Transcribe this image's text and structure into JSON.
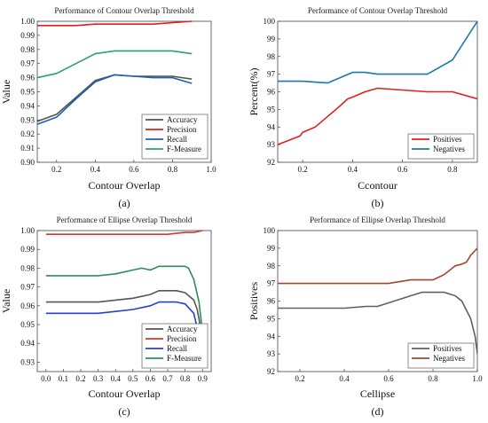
{
  "chart_data": [
    {
      "panel_label": "(a)",
      "type": "line",
      "title": "Performance of Contour Overlap Threshold",
      "xlabel": "Contour Overlap",
      "ylabel": "Value",
      "xlim": [
        0.1,
        1.0
      ],
      "ylim": [
        0.9,
        1.0
      ],
      "xticks": [
        "0.2",
        "0.4",
        "0.6",
        "0.8",
        "1.0"
      ],
      "yticks": [
        "0.90",
        "0.91",
        "0.92",
        "0.93",
        "0.94",
        "0.95",
        "0.96",
        "0.97",
        "0.98",
        "0.99",
        "1.00"
      ],
      "legend_position": "bottom-right",
      "series": [
        {
          "name": "Accuracy",
          "color": "#555555",
          "x": [
            0.1,
            0.2,
            0.3,
            0.4,
            0.5,
            0.6,
            0.7,
            0.8,
            0.9
          ],
          "y": [
            0.929,
            0.934,
            0.946,
            0.958,
            0.962,
            0.961,
            0.961,
            0.961,
            0.959
          ]
        },
        {
          "name": "Precision",
          "color": "#e02020",
          "x": [
            0.1,
            0.2,
            0.3,
            0.4,
            0.5,
            0.6,
            0.7,
            0.8,
            0.9
          ],
          "y": [
            0.997,
            0.997,
            0.997,
            0.998,
            0.998,
            0.998,
            0.998,
            0.999,
            1.0
          ]
        },
        {
          "name": "Recall",
          "color": "#1f5fb4",
          "x": [
            0.1,
            0.2,
            0.3,
            0.4,
            0.5,
            0.6,
            0.7,
            0.8,
            0.9
          ],
          "y": [
            0.927,
            0.932,
            0.945,
            0.957,
            0.962,
            0.961,
            0.96,
            0.96,
            0.956
          ]
        },
        {
          "name": "F-Measure",
          "color": "#2e9e6b",
          "x": [
            0.1,
            0.2,
            0.3,
            0.4,
            0.5,
            0.6,
            0.7,
            0.8,
            0.9
          ],
          "y": [
            0.96,
            0.963,
            0.97,
            0.977,
            0.979,
            0.979,
            0.979,
            0.979,
            0.977
          ]
        }
      ]
    },
    {
      "panel_label": "(b)",
      "type": "line",
      "title": "Performance of Contour Overlap Threshold",
      "xlabel": "Ccontour",
      "ylabel": "Percent(%)",
      "xlim": [
        0.1,
        0.9
      ],
      "ylim": [
        92,
        100
      ],
      "xticks": [
        "0.2",
        "0.4",
        "0.6",
        "0.8"
      ],
      "yticks": [
        "92",
        "93",
        "94",
        "95",
        "96",
        "97",
        "98",
        "99",
        "100"
      ],
      "legend_position": "bottom-right",
      "series": [
        {
          "name": "Positives",
          "color": "#e02020",
          "x": [
            0.1,
            0.19,
            0.2,
            0.25,
            0.3,
            0.35,
            0.38,
            0.4,
            0.45,
            0.5,
            0.6,
            0.7,
            0.8,
            0.9
          ],
          "y": [
            93.0,
            93.5,
            93.7,
            94.0,
            94.6,
            95.2,
            95.6,
            95.7,
            96.0,
            96.2,
            96.1,
            96.0,
            96.0,
            95.6
          ]
        },
        {
          "name": "Negatives",
          "color": "#1a7aa8",
          "x": [
            0.1,
            0.2,
            0.3,
            0.35,
            0.4,
            0.45,
            0.5,
            0.6,
            0.7,
            0.8,
            0.9
          ],
          "y": [
            96.6,
            96.6,
            96.5,
            96.8,
            97.1,
            97.1,
            97.0,
            97.0,
            97.0,
            97.8,
            100.0
          ]
        }
      ]
    },
    {
      "panel_label": "(c)",
      "type": "line",
      "title": "Performance of Ellipse Overlap Threshold",
      "xlabel": "Contour Overlap",
      "ylabel": "Value",
      "xlim": [
        -0.05,
        0.95
      ],
      "ylim": [
        0.925,
        1.0
      ],
      "xticks": [
        "0.0",
        "0.1",
        "0.2",
        "0.3",
        "0.4",
        "0.5",
        "0.6",
        "0.7",
        "0.8",
        "0.9"
      ],
      "yticks": [
        "0.93",
        "0.94",
        "0.95",
        "0.96",
        "0.97",
        "0.98",
        "0.99",
        "1.00"
      ],
      "legend_position": "bottom-right",
      "series": [
        {
          "name": "Accuracy",
          "color": "#555555",
          "x": [
            0.0,
            0.1,
            0.2,
            0.3,
            0.4,
            0.5,
            0.6,
            0.65,
            0.7,
            0.75,
            0.8,
            0.85,
            0.87,
            0.89,
            0.91
          ],
          "y": [
            0.962,
            0.962,
            0.962,
            0.962,
            0.963,
            0.964,
            0.966,
            0.968,
            0.968,
            0.968,
            0.967,
            0.963,
            0.958,
            0.948,
            0.935
          ]
        },
        {
          "name": "Precision",
          "color": "#d03a2a",
          "x": [
            0.0,
            0.2,
            0.4,
            0.6,
            0.7,
            0.8,
            0.85,
            0.9
          ],
          "y": [
            0.998,
            0.998,
            0.998,
            0.998,
            0.998,
            0.999,
            0.999,
            1.0
          ]
        },
        {
          "name": "Recall",
          "color": "#2a3fd0",
          "x": [
            0.0,
            0.1,
            0.2,
            0.3,
            0.4,
            0.5,
            0.6,
            0.65,
            0.7,
            0.75,
            0.8,
            0.85,
            0.87,
            0.89,
            0.9
          ],
          "y": [
            0.956,
            0.956,
            0.956,
            0.956,
            0.957,
            0.958,
            0.96,
            0.962,
            0.962,
            0.962,
            0.961,
            0.956,
            0.948,
            0.936,
            0.928
          ]
        },
        {
          "name": "F-Measure",
          "color": "#2e8b57",
          "x": [
            0.0,
            0.1,
            0.2,
            0.3,
            0.4,
            0.5,
            0.55,
            0.6,
            0.65,
            0.7,
            0.75,
            0.8,
            0.82,
            0.85,
            0.88,
            0.91
          ],
          "y": [
            0.976,
            0.976,
            0.976,
            0.976,
            0.977,
            0.979,
            0.98,
            0.979,
            0.981,
            0.981,
            0.981,
            0.981,
            0.98,
            0.974,
            0.962,
            0.938
          ]
        }
      ]
    },
    {
      "panel_label": "(d)",
      "type": "line",
      "title": "Performance of Ellipse Overlap Threshold",
      "xlabel": "Cellipse",
      "ylabel": "Positives",
      "xlim": [
        0.1,
        1.0
      ],
      "ylim": [
        92,
        100
      ],
      "xticks": [
        "0.2",
        "0.4",
        "0.6",
        "0.8",
        "1.0"
      ],
      "yticks": [
        "92",
        "93",
        "94",
        "95",
        "96",
        "97",
        "98",
        "99",
        "100"
      ],
      "legend_position": "bottom-right",
      "series": [
        {
          "name": "Positives",
          "color": "#606060",
          "x": [
            0.1,
            0.2,
            0.3,
            0.4,
            0.5,
            0.55,
            0.6,
            0.65,
            0.7,
            0.75,
            0.8,
            0.85,
            0.9,
            0.93,
            0.95,
            0.97,
            0.99,
            1.0
          ],
          "y": [
            95.6,
            95.6,
            95.6,
            95.6,
            95.7,
            95.7,
            95.9,
            96.1,
            96.3,
            96.5,
            96.5,
            96.5,
            96.3,
            96.0,
            95.5,
            95.0,
            94.0,
            93.0
          ]
        },
        {
          "name": "Negatives",
          "color": "#a0482a",
          "x": [
            0.1,
            0.2,
            0.3,
            0.4,
            0.5,
            0.6,
            0.65,
            0.7,
            0.75,
            0.8,
            0.85,
            0.9,
            0.93,
            0.95,
            0.97,
            1.0
          ],
          "y": [
            97.0,
            97.0,
            97.0,
            97.0,
            97.0,
            97.0,
            97.1,
            97.2,
            97.2,
            97.2,
            97.5,
            98.0,
            98.1,
            98.2,
            98.6,
            99.0
          ]
        }
      ]
    }
  ]
}
